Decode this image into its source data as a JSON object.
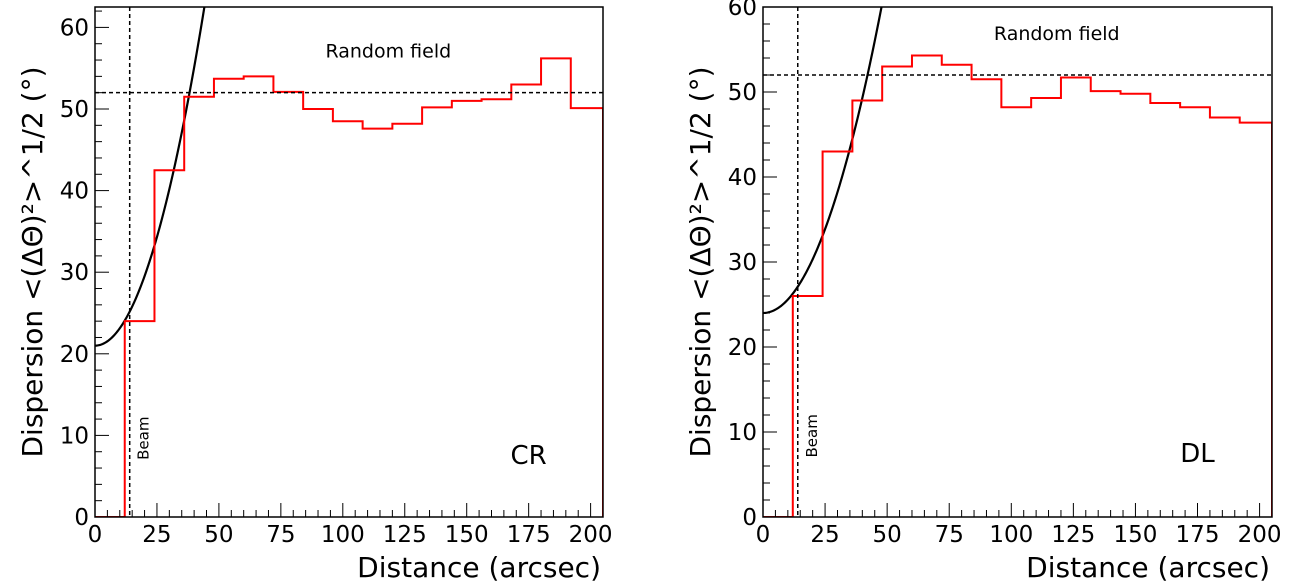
{
  "chart_data": [
    {
      "type": "step",
      "panel_label": "CR",
      "xlabel": "Distance (arcsec)",
      "ylabel": "Dispersion <(ΔΘ)²>^1/2 (°)",
      "xlim": [
        0,
        205
      ],
      "ylim": [
        0,
        62.5
      ],
      "xticks": [
        0,
        25,
        50,
        75,
        100,
        125,
        150,
        175,
        200
      ],
      "yticks": [
        0,
        10,
        20,
        30,
        40,
        50,
        60
      ],
      "grid": false,
      "histogram": {
        "color": "#ff0000",
        "bin_edges": [
          0,
          12,
          24,
          36,
          48,
          60,
          72,
          84,
          96,
          108,
          120,
          132,
          144,
          156,
          168,
          180,
          192,
          205
        ],
        "values": [
          0,
          24,
          42.5,
          51.5,
          53.7,
          54.0,
          52.1,
          50.0,
          48.5,
          47.6,
          48.2,
          50.2,
          51.0,
          51.2,
          53.0,
          56.2,
          50.1
        ]
      },
      "fit_curve": {
        "color": "#000000",
        "model": "quadratic",
        "coefficients": {
          "a": 21.0,
          "b": 0.0,
          "c": 0.0213
        }
      },
      "random_field": {
        "label": "Random field",
        "value": 52
      },
      "beam": {
        "label": "Beam",
        "value": 14
      }
    },
    {
      "type": "step",
      "panel_label": "DL",
      "xlabel": "Distance (arcsec)",
      "ylabel": "Dispersion <(ΔΘ)²>^1/2 (°)",
      "xlim": [
        0,
        205
      ],
      "ylim": [
        0,
        60
      ],
      "xticks": [
        0,
        25,
        50,
        75,
        100,
        125,
        150,
        175,
        200
      ],
      "yticks": [
        0,
        10,
        20,
        30,
        40,
        50,
        60
      ],
      "grid": false,
      "histogram": {
        "color": "#ff0000",
        "bin_edges": [
          0,
          12,
          24,
          36,
          48,
          60,
          72,
          84,
          96,
          108,
          120,
          132,
          144,
          156,
          168,
          180,
          192,
          205
        ],
        "values": [
          0,
          26,
          43,
          49,
          53,
          54.3,
          53.2,
          51.5,
          48.2,
          49.3,
          51.7,
          50.1,
          49.8,
          48.7,
          48.2,
          47.0,
          46.4
        ]
      },
      "fit_curve": {
        "color": "#000000",
        "model": "quadratic",
        "coefficients": {
          "a": 24.0,
          "b": 0.0,
          "c": 0.0158
        }
      },
      "random_field": {
        "label": "Random field",
        "value": 52
      },
      "beam": {
        "label": "Beam",
        "value": 14
      }
    }
  ]
}
